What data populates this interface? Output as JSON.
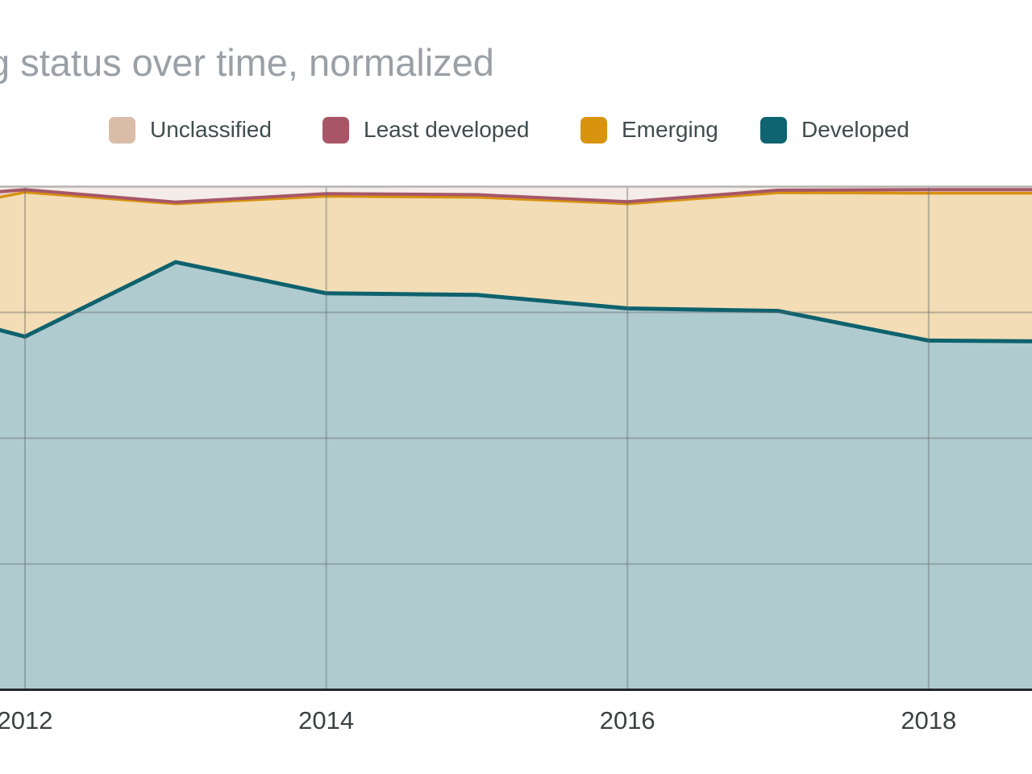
{
  "title": {
    "visible_text": "g status over time, normalized",
    "note": "title is cropped on the left edge of the screenshot"
  },
  "legend": {
    "items": [
      {
        "label": "Unclassified",
        "color": "#d9bda9"
      },
      {
        "label": "Least developed",
        "color": "#a85666"
      },
      {
        "label": "Emerging",
        "color": "#d8940e"
      },
      {
        "label": "Developed",
        "color": "#0e6470"
      }
    ]
  },
  "colors": {
    "title_text": "#9aa0a6",
    "legend_text": "#3f4c4e",
    "tick_text": "#3c4043",
    "gridline": "rgba(98,104,106,0.42)",
    "top_border": "#b6b3b1",
    "axis_line": "#24282b",
    "background": "#ffffff"
  },
  "chart_data": {
    "type": "area",
    "stacking": "normalized_percent",
    "title": "g status over time, normalized",
    "xlabel": "",
    "ylabel": "",
    "ylim": [
      0,
      100
    ],
    "grid": true,
    "legend_position": "top",
    "x": [
      2011,
      2012,
      2013,
      2014,
      2015,
      2016,
      2017,
      2018,
      2019
    ],
    "x_note": "2011 and 2019 lie beyond the cropped viewport; their values are extrapolated from the visible edge segments",
    "x_tick_labels": [
      "2012",
      "2014",
      "2016",
      "2018"
    ],
    "x_tick_years": [
      2012,
      2014,
      2016,
      2018
    ],
    "y_gridlines_pct": [
      100,
      75,
      50,
      25,
      0
    ],
    "series": [
      {
        "name": "Developed",
        "stroke": "#0e626e",
        "fill": "#b0cbd0",
        "values": [
          78.0,
          70.2,
          85.0,
          78.8,
          78.5,
          75.8,
          75.3,
          69.4,
          69.2
        ]
      },
      {
        "name": "Emerging",
        "stroke": "#d89110",
        "fill": "#f2ddb6",
        "values": [
          15.0,
          28.7,
          11.6,
          19.3,
          19.4,
          20.8,
          23.5,
          29.3,
          29.5
        ]
      },
      {
        "name": "Least developed",
        "stroke": "#a65767",
        "fill": "#e8d0d2",
        "values": [
          4.0,
          0.5,
          0.3,
          0.5,
          0.5,
          0.4,
          0.5,
          0.7,
          0.7
        ]
      },
      {
        "name": "Unclassified",
        "stroke": "#d9bda9",
        "fill": "#f4ece7",
        "values": [
          3.0,
          0.6,
          3.1,
          1.4,
          1.6,
          3.0,
          0.7,
          0.6,
          0.6
        ]
      }
    ]
  }
}
